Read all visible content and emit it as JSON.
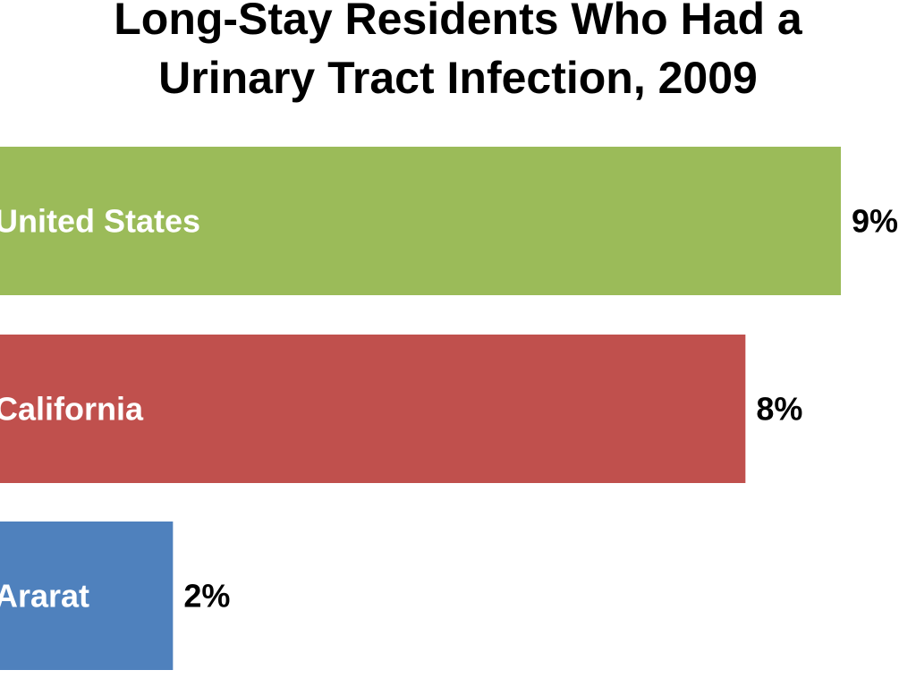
{
  "chart_data": {
    "type": "bar",
    "orientation": "horizontal",
    "title_lines": [
      "Long-Stay Residents Who Had a",
      "Urinary Tract Infection, 2009"
    ],
    "categories": [
      "United States",
      "California",
      "Ararat"
    ],
    "values": [
      9,
      8,
      2
    ],
    "value_labels": [
      "9%",
      "8%",
      "2%"
    ],
    "unit": "%",
    "xlim": [
      0,
      9
    ],
    "grid": false,
    "legend": "none",
    "colors": [
      "#9BBB59",
      "#C0504D",
      "#4F81BD"
    ]
  }
}
